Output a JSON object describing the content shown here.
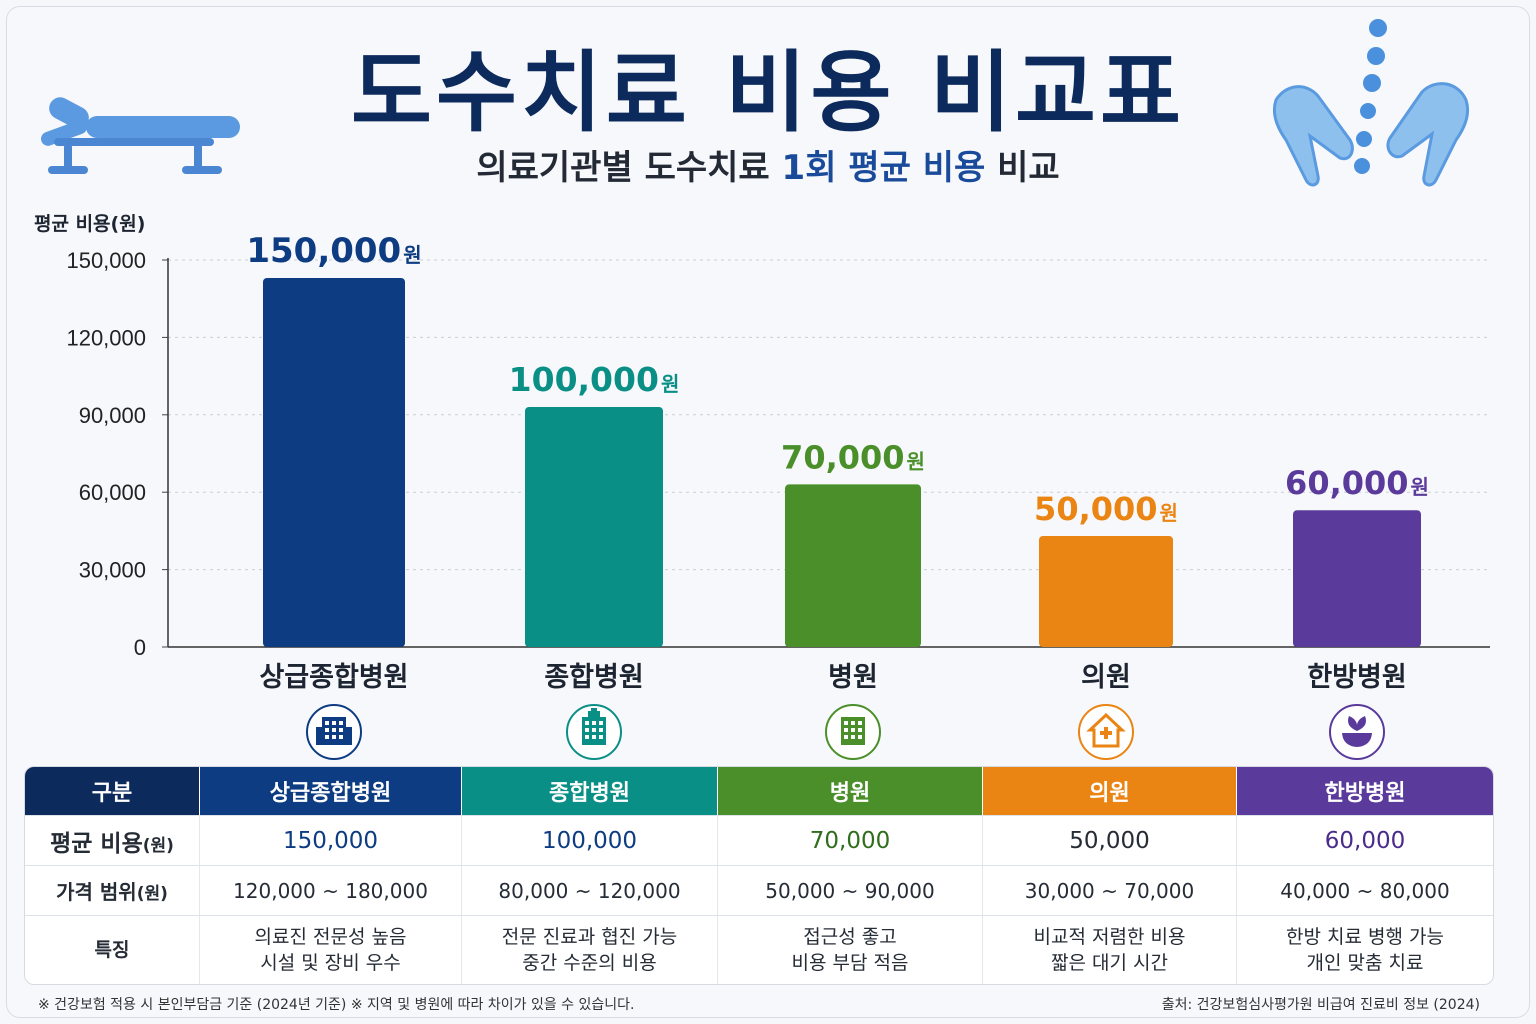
{
  "title": "도수치료 비용 비교표",
  "subtitle": {
    "pre": "의료기관별 도수치료 ",
    "highlight": "1회 평균 비용",
    "post": " 비교"
  },
  "icons": {
    "left": "treatment-bed-icon",
    "right": "massage-hands-icon"
  },
  "chart_data": {
    "type": "bar",
    "ylabel": "평균 비용(원)",
    "ylim": [
      0,
      150000
    ],
    "yticks": [
      "0",
      "30,000",
      "60,000",
      "90,000",
      "120,000",
      "150,000"
    ],
    "yticks_values": [
      0,
      30000,
      60000,
      90000,
      120000,
      150000
    ],
    "grid": true,
    "categories": [
      "상급종합병원",
      "종합병원",
      "병원",
      "의원",
      "한방병원"
    ],
    "values": [
      150000,
      100000,
      70000,
      50000,
      60000
    ],
    "value_labels": [
      "150,000",
      "100,000",
      "70,000",
      "50,000",
      "60,000"
    ],
    "unit": "원",
    "colors": [
      "#0d3c82",
      "#0a8f86",
      "#4a8f2a",
      "#ea8413",
      "#5a3a9a"
    ],
    "category_icons": [
      "hospital-building-icon",
      "general-hospital-icon",
      "building-icon",
      "clinic-house-icon",
      "herbal-bowl-icon"
    ]
  },
  "table": {
    "header_label": "구분",
    "header_color": "#0d2a5c",
    "columns": [
      "상급종합병원",
      "종합병원",
      "병원",
      "의원",
      "한방병원"
    ],
    "rows": [
      {
        "label": "평균 비용",
        "unit": "(원)",
        "cells": [
          "150,000",
          "100,000",
          "70,000",
          "50,000",
          "60,000"
        ]
      },
      {
        "label": "가격 범위",
        "unit": "(원)",
        "cells": [
          "120,000 ~ 180,000",
          "80,000 ~ 120,000",
          "50,000 ~ 90,000",
          "30,000 ~ 70,000",
          "40,000 ~ 80,000"
        ]
      },
      {
        "label": "특징",
        "cells": [
          [
            "의료진 전문성 높음",
            "시설 및 장비 우수"
          ],
          [
            "전문 진료과 협진 가능",
            "중간 수준의 비용"
          ],
          [
            "접근성 좋고",
            "비용 부담 적음"
          ],
          [
            "비교적 저렴한 비용",
            "짧은 대기 시간"
          ],
          [
            "한방 치료 병행 가능",
            "개인 맞춤 치료"
          ]
        ]
      }
    ],
    "value_colors": [
      "#0d3c82",
      "#0d3c82",
      "#2f6e1c",
      "#262c36",
      "#4a2a8a"
    ]
  },
  "footnote_left": "※ 건강보험 적용 시 본인부담금 기준 (2024년 기준)  ※ 지역 및 병원에 따라 차이가 있을 수 있습니다.",
  "footnote_right": "출처: 건강보험심사평가원 비급여 진료비 정보 (2024)"
}
